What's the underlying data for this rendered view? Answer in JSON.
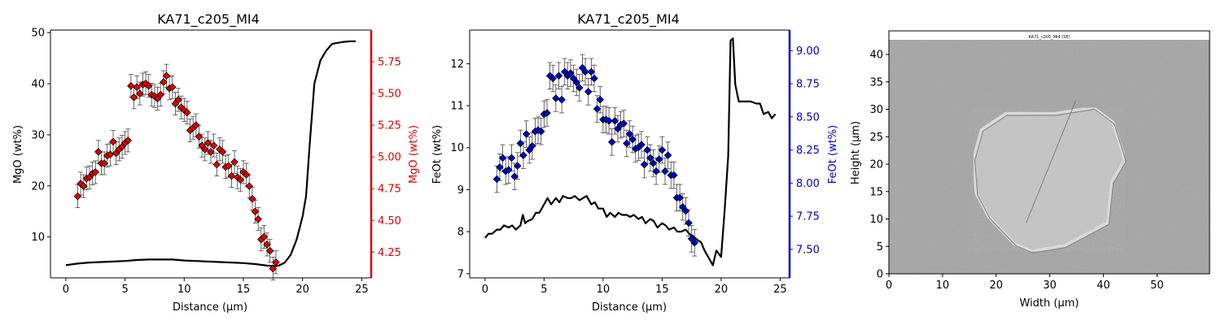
{
  "colors": {
    "mgo": "#e00000",
    "feo": "#0000cc",
    "black": "#000000"
  },
  "chart_data": [
    {
      "type": "scatter",
      "title": "KA71_c205_MI4",
      "xlabel": "Distance (µm)",
      "ylabel": "MgO (wt%)",
      "y2label": "MgO (wt%)",
      "xlim": [
        -1.3,
        25.8
      ],
      "ylim": [
        2,
        50.5
      ],
      "y2lim": [
        4.047,
        6.0
      ],
      "xticks": [
        "0",
        "5",
        "10",
        "15",
        "20",
        "25"
      ],
      "yticks": [
        "10",
        "20",
        "30",
        "40",
        "50"
      ],
      "y2ticks": [
        "4.25",
        "4.50",
        "4.75",
        "5.00",
        "5.25",
        "5.50",
        "5.75"
      ],
      "series": [
        {
          "axis": "left",
          "style": "line",
          "x": [
            0,
            1,
            2,
            3,
            4,
            5,
            6,
            7,
            8,
            9,
            10,
            11,
            12,
            13,
            14,
            15,
            16,
            17,
            17.5,
            18,
            18.5,
            19,
            19.5,
            20,
            20.3,
            20.6,
            21,
            21.5,
            22,
            22.5,
            23,
            23.5,
            24,
            24.5
          ],
          "y": [
            4.5,
            4.8,
            5.0,
            5.1,
            5.2,
            5.3,
            5.5,
            5.6,
            5.6,
            5.6,
            5.4,
            5.3,
            5.2,
            5.1,
            5.0,
            4.9,
            4.7,
            4.4,
            4.3,
            4.4,
            5.0,
            6.5,
            9.5,
            14.0,
            18.0,
            28.0,
            40.0,
            44.5,
            46.5,
            47.8,
            48.0,
            48.2,
            48.3,
            48.3
          ]
        },
        {
          "axis": "right",
          "style": "markers",
          "marker": "diamond",
          "x": [
            1.0,
            1.25,
            1.5,
            1.75,
            2.0,
            2.25,
            2.5,
            2.75,
            3.0,
            3.25,
            3.5,
            3.75,
            4.0,
            4.25,
            4.5,
            4.75,
            5.0,
            5.25,
            5.5,
            5.75,
            6.0,
            6.25,
            6.5,
            6.75,
            7.0,
            7.25,
            7.5,
            7.75,
            8.0,
            8.25,
            8.5,
            8.75,
            9.0,
            9.25,
            9.5,
            9.75,
            10.0,
            10.25,
            10.5,
            10.75,
            11.0,
            11.25,
            11.5,
            11.75,
            12.0,
            12.25,
            12.5,
            12.75,
            13.0,
            13.25,
            13.5,
            13.75,
            14.0,
            14.25,
            14.5,
            14.75,
            15.0,
            15.25,
            15.5,
            15.75,
            16.0,
            16.25,
            16.5,
            16.75,
            17.0,
            17.25,
            17.5,
            17.75
          ],
          "y": [
            4.69,
            4.79,
            4.77,
            4.83,
            4.84,
            4.87,
            4.88,
            5.04,
            4.95,
            4.95,
            5.01,
            5.02,
            5.12,
            5.03,
            5.06,
            5.08,
            5.11,
            5.13,
            5.56,
            5.47,
            5.55,
            5.5,
            5.57,
            5.58,
            5.56,
            5.49,
            5.48,
            5.46,
            5.49,
            5.59,
            5.64,
            5.54,
            5.55,
            5.42,
            5.45,
            5.39,
            5.37,
            5.35,
            5.21,
            5.23,
            5.25,
            5.16,
            5.09,
            5.06,
            5.11,
            5.04,
            5.09,
            4.94,
            5.06,
            5.04,
            4.92,
            4.93,
            4.85,
            4.96,
            4.84,
            4.82,
            4.88,
            4.86,
            4.77,
            4.67,
            4.57,
            4.51,
            4.35,
            4.37,
            4.31,
            4.26,
            4.12,
            4.17
          ],
          "yerr": 0.09
        }
      ]
    },
    {
      "type": "scatter",
      "title": "KA71_c205_MI4",
      "xlabel": "Distance (µm)",
      "ylabel": "FeOt (wt%)",
      "y2label": "FeOt (wt%)",
      "xlim": [
        -1.3,
        25.8
      ],
      "ylim": [
        6.9,
        12.8
      ],
      "y2lim": [
        7.285,
        9.155
      ],
      "xticks": [
        "0",
        "5",
        "10",
        "15",
        "20",
        "25"
      ],
      "yticks": [
        "7",
        "8",
        "9",
        "10",
        "11",
        "12"
      ],
      "y2ticks": [
        "7.50",
        "7.75",
        "8.00",
        "8.25",
        "8.50",
        "8.75",
        "9.00"
      ],
      "series": [
        {
          "axis": "left",
          "style": "line",
          "x": [
            0,
            0.3,
            0.6,
            1,
            1.3,
            1.6,
            2,
            2.3,
            2.6,
            3,
            3.2,
            3.4,
            3.6,
            4,
            4.3,
            4.6,
            5,
            5.3,
            5.6,
            6,
            6.3,
            6.6,
            7,
            7.3,
            7.6,
            8,
            8.3,
            8.6,
            9,
            9.3,
            9.6,
            10,
            10.3,
            10.6,
            11,
            11.3,
            11.6,
            12,
            12.3,
            12.6,
            13,
            13.3,
            13.6,
            14,
            14.3,
            14.6,
            15,
            15.3,
            15.6,
            16,
            16.3,
            16.6,
            17,
            17.3,
            17.6,
            18,
            18.3,
            18.6,
            19,
            19.3,
            19.6,
            20,
            20.3,
            20.6,
            20.8,
            21,
            21.2,
            21.5,
            22,
            22.5,
            23,
            23.3,
            23.6,
            24,
            24.3,
            24.6
          ],
          "y": [
            7.85,
            7.95,
            7.95,
            8.05,
            8.05,
            8.15,
            8.1,
            8.15,
            8.05,
            8.15,
            8.4,
            8.2,
            8.25,
            8.3,
            8.45,
            8.45,
            8.65,
            8.8,
            8.65,
            8.8,
            8.7,
            8.85,
            8.8,
            8.8,
            8.85,
            8.75,
            8.8,
            8.85,
            8.65,
            8.7,
            8.55,
            8.55,
            8.35,
            8.45,
            8.35,
            8.45,
            8.4,
            8.4,
            8.35,
            8.4,
            8.3,
            8.35,
            8.2,
            8.3,
            8.25,
            8.1,
            8.2,
            8.15,
            8.05,
            8.1,
            8.0,
            8.0,
            8.05,
            7.95,
            7.9,
            7.8,
            7.75,
            7.55,
            7.35,
            7.2,
            7.55,
            7.4,
            8.5,
            9.8,
            12.55,
            12.6,
            11.5,
            11.1,
            11.1,
            11.1,
            11.05,
            11.05,
            10.8,
            10.85,
            10.7,
            10.8
          ],
          "xnote": "line"
        },
        {
          "axis": "right",
          "style": "markers",
          "marker": "diamond",
          "x": [
            1.0,
            1.25,
            1.5,
            1.75,
            2.0,
            2.25,
            2.5,
            2.75,
            3.0,
            3.25,
            3.5,
            3.75,
            4.0,
            4.25,
            4.5,
            4.75,
            5.0,
            5.25,
            5.5,
            5.75,
            6.0,
            6.25,
            6.5,
            6.75,
            7.0,
            7.25,
            7.5,
            7.75,
            8.0,
            8.25,
            8.5,
            8.75,
            9.0,
            9.25,
            9.5,
            9.75,
            10.0,
            10.25,
            10.5,
            10.75,
            11.0,
            11.25,
            11.5,
            11.75,
            12.0,
            12.25,
            12.5,
            12.75,
            13.0,
            13.25,
            13.5,
            13.75,
            14.0,
            14.25,
            14.5,
            14.75,
            15.0,
            15.25,
            15.5,
            15.75,
            16.0,
            16.25,
            16.5,
            16.75,
            17.0,
            17.25,
            17.5,
            17.75
          ],
          "y": [
            8.03,
            8.12,
            8.19,
            8.09,
            8.1,
            8.19,
            8.05,
            8.13,
            8.3,
            8.21,
            8.37,
            8.25,
            8.28,
            8.39,
            8.4,
            8.39,
            8.52,
            8.53,
            8.81,
            8.79,
            8.64,
            8.81,
            8.63,
            8.84,
            8.81,
            8.83,
            8.79,
            8.76,
            8.72,
            8.87,
            8.84,
            8.69,
            8.84,
            8.79,
            8.56,
            8.63,
            8.48,
            8.48,
            8.47,
            8.31,
            8.47,
            8.41,
            8.44,
            8.45,
            8.3,
            8.37,
            8.33,
            8.26,
            8.27,
            8.29,
            8.14,
            8.25,
            8.19,
            8.15,
            8.09,
            8.18,
            8.25,
            8.09,
            8.21,
            8.06,
            8.06,
            7.89,
            7.89,
            7.82,
            7.79,
            7.7,
            7.58,
            7.55
          ],
          "yerr": 0.1
        }
      ]
    },
    {
      "type": "image",
      "xlabel": "Width (µm)",
      "ylabel": "Height (µm)",
      "xlim": [
        0,
        59.8
      ],
      "ylim": [
        0,
        44.3
      ],
      "xticks": [
        "0",
        "10",
        "20",
        "30",
        "40",
        "50"
      ],
      "yticks": [
        "0",
        "5",
        "10",
        "15",
        "20",
        "25",
        "30",
        "35",
        "40"
      ],
      "banner": "KA71_c205_MI4 (SE)",
      "outline": [
        [
          21.8,
          29.2
        ],
        [
          17.3,
          26.3
        ],
        [
          15.8,
          21.0
        ],
        [
          16.3,
          14.7
        ],
        [
          18.6,
          10.4
        ],
        [
          23.5,
          5.4
        ],
        [
          26.6,
          4.1
        ],
        [
          32.7,
          5.1
        ],
        [
          40.8,
          9.3
        ],
        [
          41.6,
          16.8
        ],
        [
          44.0,
          20.8
        ],
        [
          41.8,
          27.6
        ],
        [
          38.1,
          30.3
        ],
        [
          31.0,
          29.2
        ]
      ],
      "traverse": [
        [
          25.6,
          9.3
        ],
        [
          34.8,
          31.5
        ]
      ]
    }
  ]
}
